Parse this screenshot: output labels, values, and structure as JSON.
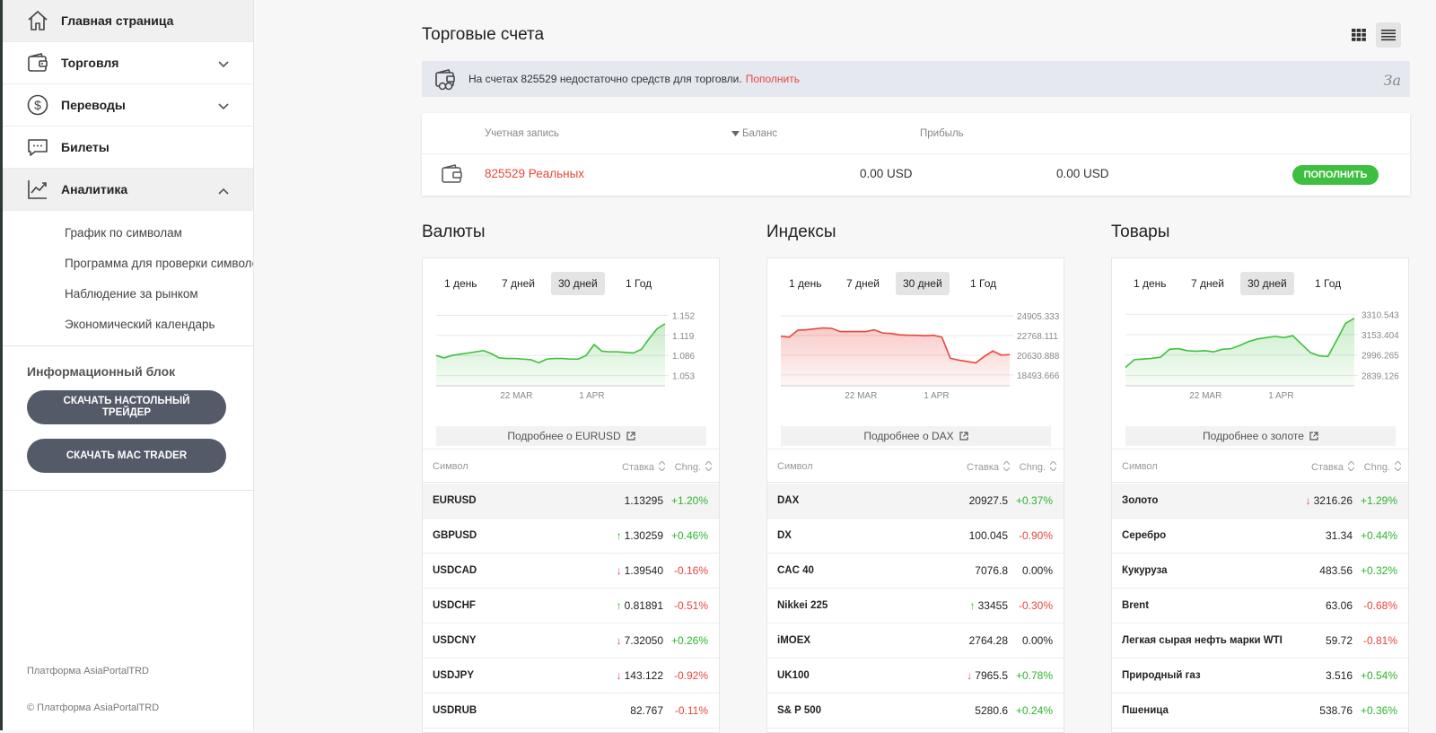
{
  "sidebar": {
    "nav": [
      {
        "label": "Главная страница"
      },
      {
        "label": "Торговля"
      },
      {
        "label": "Переводы"
      },
      {
        "label": "Билеты"
      },
      {
        "label": "Аналитика"
      }
    ],
    "analytics_sub": [
      {
        "label": "График по символам"
      },
      {
        "label": "Программа для проверки символов"
      },
      {
        "label": "Наблюдение за рынком"
      },
      {
        "label": "Экономический календарь"
      }
    ],
    "info_title": "Информационный блок",
    "download_desktop": "СКАЧАТЬ НАСТОЛЬНЫЙ ТРЕЙДЕР",
    "download_mac": "СКАЧАТЬ MAC TRADER",
    "footer_platform": "Платформа AsiaPortalTRD",
    "footer_copyright": "© Платформа AsiaPortalTRD"
  },
  "header": {
    "title": "Торговые счета"
  },
  "alert": {
    "text": "На счетах 825529 недостаточно средств для торговли.",
    "link": "Пополнить",
    "close": "За"
  },
  "accounts": {
    "col_account": "Учетная запись",
    "col_balance": "Баланс",
    "col_profit": "Прибыль",
    "row": {
      "name": "825529 Реальных",
      "balance": "0.00 USD",
      "profit": "0.00 USD",
      "button": "ПОПОЛНИТЬ"
    }
  },
  "colors": {
    "pos": "#2db52d",
    "neg": "#e8463c",
    "accent": "#3fbf3f"
  },
  "panels": [
    {
      "title": "Валюты",
      "periods": [
        "1 день",
        "7 дней",
        "30 дней",
        "1 Год"
      ],
      "selected_period": 2,
      "more_link": "Подробнее о EURUSD",
      "col_symbol": "Символ",
      "col_rate": "Ставка",
      "col_chg": "Chng.",
      "rows": [
        {
          "symbol": "EURUSD",
          "arrow": "",
          "rate": "1.13295",
          "chg": "+1.20%",
          "dir": "pos"
        },
        {
          "symbol": "GBPUSD",
          "arrow": "up",
          "rate": "1.30259",
          "chg": "+0.46%",
          "dir": "pos"
        },
        {
          "symbol": "USDCAD",
          "arrow": "down",
          "rate": "1.39540",
          "chg": "-0.16%",
          "dir": "neg"
        },
        {
          "symbol": "USDCHF",
          "arrow": "up",
          "rate": "0.81891",
          "chg": "-0.51%",
          "dir": "neg"
        },
        {
          "symbol": "USDCNY",
          "arrow": "down",
          "rate": "7.32050",
          "chg": "+0.26%",
          "dir": "pos"
        },
        {
          "symbol": "USDJPY",
          "arrow": "down",
          "rate": "143.122",
          "chg": "-0.92%",
          "dir": "neg"
        },
        {
          "symbol": "USDRUB",
          "arrow": "",
          "rate": "82.767",
          "chg": "-0.11%",
          "dir": "neg"
        }
      ]
    },
    {
      "title": "Индексы",
      "periods": [
        "1 день",
        "7 дней",
        "30 дней",
        "1 Год"
      ],
      "selected_period": 2,
      "more_link": "Подробнее о DAX",
      "col_symbol": "Символ",
      "col_rate": "Ставка",
      "col_chg": "Chng.",
      "rows": [
        {
          "symbol": "DAX",
          "arrow": "",
          "rate": "20927.5",
          "chg": "+0.37%",
          "dir": "pos"
        },
        {
          "symbol": "DX",
          "arrow": "",
          "rate": "100.045",
          "chg": "-0.90%",
          "dir": "neg"
        },
        {
          "symbol": "CAC 40",
          "arrow": "",
          "rate": "7076.8",
          "chg": "0.00%",
          "dir": "neu"
        },
        {
          "symbol": "Nikkei 225",
          "arrow": "up",
          "rate": "33455",
          "chg": "-0.30%",
          "dir": "neg"
        },
        {
          "symbol": "iMOEX",
          "arrow": "",
          "rate": "2764.28",
          "chg": "0.00%",
          "dir": "neu"
        },
        {
          "symbol": "UK100",
          "arrow": "down",
          "rate": "7965.5",
          "chg": "+0.78%",
          "dir": "pos"
        },
        {
          "symbol": "S& P 500",
          "arrow": "",
          "rate": "5280.6",
          "chg": "+0.24%",
          "dir": "pos"
        }
      ]
    },
    {
      "title": "Товары",
      "periods": [
        "1 день",
        "7 дней",
        "30 дней",
        "1 Год"
      ],
      "selected_period": 2,
      "more_link": "Подробнее о золоте",
      "col_symbol": "Символ",
      "col_rate": "Ставка",
      "col_chg": "Chng.",
      "rows": [
        {
          "symbol": "Золото",
          "arrow": "down",
          "rate": "3216.26",
          "chg": "+1.29%",
          "dir": "pos"
        },
        {
          "symbol": "Серебро",
          "arrow": "",
          "rate": "31.34",
          "chg": "+0.44%",
          "dir": "pos"
        },
        {
          "symbol": "Кукуруза",
          "arrow": "",
          "rate": "483.56",
          "chg": "+0.32%",
          "dir": "pos"
        },
        {
          "symbol": "Brent",
          "arrow": "",
          "rate": "63.06",
          "chg": "-0.68%",
          "dir": "neg"
        },
        {
          "symbol": "Легкая сырая нефть марки WTI",
          "arrow": "",
          "rate": "59.72",
          "chg": "-0.81%",
          "dir": "neg"
        },
        {
          "symbol": "Природный газ",
          "arrow": "",
          "rate": "3.516",
          "chg": "+0.54%",
          "dir": "pos"
        },
        {
          "symbol": "Пшеница",
          "arrow": "",
          "rate": "538.76",
          "chg": "+0.36%",
          "dir": "pos"
        }
      ]
    }
  ],
  "chart_data": [
    {
      "type": "area",
      "title": "EURUSD",
      "color": "#3fbf3f",
      "y_ticks": [
        "1.152",
        "1.119",
        "1.086",
        "1.053"
      ],
      "x_ticks": [
        "22 MAR",
        "1 APR"
      ],
      "ylim": [
        1.045,
        1.16
      ],
      "values": [
        1.086,
        1.082,
        1.086,
        1.088,
        1.09,
        1.092,
        1.094,
        1.089,
        1.082,
        1.081,
        1.081,
        1.08,
        1.079,
        1.074,
        1.08,
        1.081,
        1.081,
        1.08,
        1.08,
        1.086,
        1.104,
        1.093,
        1.092,
        1.092,
        1.091,
        1.09,
        1.096,
        1.114,
        1.13,
        1.138
      ]
    },
    {
      "type": "area",
      "title": "DAX",
      "color": "#e8463c",
      "y_ticks": [
        "24905.333",
        "22768.111",
        "20630.888",
        "18493.666"
      ],
      "x_ticks": [
        "22 MAR",
        "1 APR"
      ],
      "ylim": [
        17900,
        25500
      ],
      "values": [
        22700,
        22600,
        23350,
        23400,
        23500,
        23600,
        23550,
        23200,
        23200,
        23200,
        23200,
        23400,
        23050,
        23000,
        22850,
        22800,
        22800,
        22750,
        22800,
        22600,
        20300,
        20100,
        19950,
        19800,
        20500,
        21100,
        20650,
        20700
      ]
    },
    {
      "type": "area",
      "title": "Gold",
      "color": "#3fbf3f",
      "y_ticks": [
        "3310.543",
        "3153.404",
        "2996.265",
        "2839.126"
      ],
      "x_ticks": [
        "22 MAR",
        "1 APR"
      ],
      "ylim": [
        2800,
        3340
      ],
      "values": [
        2900,
        2960,
        2965,
        2970,
        2980,
        3040,
        3045,
        3030,
        3025,
        3030,
        3020,
        3040,
        3045,
        3070,
        3100,
        3120,
        3130,
        3140,
        3130,
        3145,
        3080,
        3015,
        2990,
        2985,
        3110,
        3240,
        3280
      ]
    }
  ]
}
